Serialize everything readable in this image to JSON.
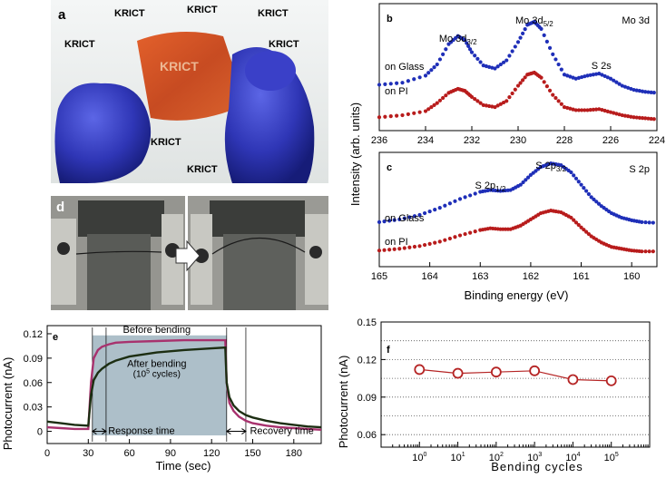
{
  "panels": {
    "a": {
      "label": "a",
      "logo_text": "KRICT"
    },
    "d": {
      "label": "d"
    },
    "b": {
      "label": "b",
      "element": "Mo 3d",
      "peaks": [
        {
          "text": "Mo 3d",
          "sub": "3/2"
        },
        {
          "text": "Mo 3d",
          "sub": "5/2"
        },
        {
          "text": "S 2s",
          "sub": ""
        }
      ],
      "x_ticks": [
        "236",
        "234",
        "232",
        "230",
        "228",
        "226",
        "224"
      ]
    },
    "c": {
      "label": "c",
      "element": "S 2p",
      "peaks": [
        {
          "text": "S 2p",
          "sub": "1/2"
        },
        {
          "text": "S 2p",
          "sub": "3/2"
        }
      ],
      "x_ticks": [
        "165",
        "164",
        "163",
        "162",
        "161",
        "160"
      ]
    },
    "bc_common": {
      "ylabel": "Intensity (arb. units)",
      "xlabel": "Binding energy (eV)",
      "series_glass": "on Glass",
      "series_pi": "on PI"
    },
    "e": {
      "label": "e",
      "xlabel": "Time (sec)",
      "ylabel": "Photocurrent (nA)",
      "before": "Before bending",
      "after_line1": "After bending",
      "after_line2_pre": "(10",
      "after_line2_sup": "5",
      "after_line2_post": " cycles)",
      "response": "Response time",
      "recovery": "Recovery time",
      "x_ticks": [
        "0",
        "30",
        "60",
        "90",
        "120",
        "150",
        "180"
      ],
      "y_ticks": [
        "0",
        "0.03",
        "0.06",
        "0.09",
        "0.12"
      ]
    },
    "f": {
      "label": "f",
      "xlabel": "Bending cycles",
      "ylabel": "Photocurrent (nA)",
      "y_ticks": [
        "0.06",
        "0.09",
        "0.12",
        "0.15"
      ],
      "x_ticks": [
        {
          "base": "10",
          "exp": "0"
        },
        {
          "base": "10",
          "exp": "1"
        },
        {
          "base": "10",
          "exp": "2"
        },
        {
          "base": "10",
          "exp": "3"
        },
        {
          "base": "10",
          "exp": "4"
        },
        {
          "base": "10",
          "exp": "5"
        }
      ]
    }
  },
  "colors": {
    "glass": "#1f2fb8",
    "pi": "#b81c1c",
    "shade": "#9fb4bf",
    "before": "#a8326e",
    "after": "#1c2e12",
    "f_marker": "#b52424",
    "xps_title": "#1a7a3a"
  },
  "chart_data": [
    {
      "type": "scatter",
      "title": "Mo 3d",
      "xlabel": "Binding energy (eV)",
      "ylabel": "Intensity (arb. units)",
      "xlim": [
        236,
        224
      ],
      "x_reversed": true,
      "series": [
        {
          "name": "on Glass",
          "x": [
            236,
            235,
            234,
            233.5,
            233,
            232.6,
            232.3,
            232,
            231.5,
            231,
            230.5,
            230,
            229.6,
            229.3,
            229,
            228.5,
            228,
            227.5,
            227,
            226.5,
            226,
            225.5,
            225,
            224.5,
            224
          ],
          "y": [
            0.38,
            0.4,
            0.47,
            0.58,
            0.78,
            0.86,
            0.82,
            0.7,
            0.57,
            0.54,
            0.62,
            0.8,
            0.97,
            1.0,
            0.93,
            0.68,
            0.48,
            0.44,
            0.47,
            0.49,
            0.44,
            0.37,
            0.33,
            0.31,
            0.3
          ]
        },
        {
          "name": "on PI",
          "x": [
            236,
            235,
            234,
            233.5,
            233,
            232.6,
            232.3,
            232,
            231.5,
            231,
            230.5,
            230,
            229.6,
            229.3,
            229,
            228.5,
            228,
            227.5,
            227,
            226.5,
            226,
            225.5,
            225,
            224.5,
            224
          ],
          "y": [
            0.06,
            0.08,
            0.12,
            0.2,
            0.3,
            0.34,
            0.32,
            0.26,
            0.18,
            0.16,
            0.22,
            0.37,
            0.48,
            0.5,
            0.45,
            0.28,
            0.16,
            0.13,
            0.13,
            0.14,
            0.11,
            0.08,
            0.06,
            0.05,
            0.04
          ]
        }
      ]
    },
    {
      "type": "scatter",
      "title": "S 2p",
      "xlabel": "Binding energy (eV)",
      "ylabel": "Intensity (arb. units)",
      "xlim": [
        165,
        159.5
      ],
      "x_reversed": true,
      "series": [
        {
          "name": "on Glass",
          "x": [
            165,
            164.6,
            164.2,
            163.8,
            163.4,
            163.0,
            162.8,
            162.6,
            162.4,
            162.2,
            162.0,
            161.8,
            161.6,
            161.4,
            161.2,
            161.0,
            160.8,
            160.6,
            160.4,
            160.2,
            160.0,
            159.8,
            159.5
          ],
          "y": [
            0.42,
            0.45,
            0.5,
            0.58,
            0.68,
            0.76,
            0.78,
            0.77,
            0.78,
            0.84,
            0.95,
            1.04,
            1.08,
            1.06,
            0.98,
            0.84,
            0.7,
            0.6,
            0.52,
            0.47,
            0.44,
            0.42,
            0.41
          ]
        },
        {
          "name": "on PI",
          "x": [
            165,
            164.6,
            164.2,
            163.8,
            163.4,
            163.0,
            162.8,
            162.6,
            162.4,
            162.2,
            162.0,
            161.8,
            161.6,
            161.4,
            161.2,
            161.0,
            160.8,
            160.6,
            160.4,
            160.2,
            160.0,
            159.8,
            159.5
          ],
          "y": [
            0.1,
            0.12,
            0.15,
            0.2,
            0.27,
            0.33,
            0.35,
            0.34,
            0.34,
            0.38,
            0.45,
            0.52,
            0.55,
            0.53,
            0.47,
            0.36,
            0.26,
            0.19,
            0.14,
            0.12,
            0.1,
            0.09,
            0.09
          ]
        }
      ]
    },
    {
      "type": "line",
      "xlabel": "Time (sec)",
      "ylabel": "Photocurrent (nA)",
      "xlim": [
        0,
        200
      ],
      "ylim": [
        -0.015,
        0.13
      ],
      "series": [
        {
          "name": "Before bending",
          "x": [
            0,
            10,
            20,
            30,
            32,
            34,
            37,
            40,
            45,
            50,
            60,
            80,
            100,
            120,
            130,
            131,
            133,
            136,
            140,
            145,
            150,
            160,
            170,
            180,
            190,
            200
          ],
          "y": [
            0.005,
            0.004,
            0.003,
            0.003,
            0.06,
            0.09,
            0.1,
            0.104,
            0.107,
            0.109,
            0.11,
            0.111,
            0.112,
            0.112,
            0.112,
            0.06,
            0.035,
            0.025,
            0.018,
            0.013,
            0.01,
            0.007,
            0.005,
            0.004,
            0.003,
            0.002
          ]
        },
        {
          "name": "After bending (10^5 cycles)",
          "x": [
            0,
            10,
            20,
            30,
            32,
            34,
            37,
            40,
            45,
            50,
            60,
            80,
            100,
            120,
            130,
            131,
            133,
            136,
            140,
            145,
            150,
            160,
            170,
            180,
            190,
            200
          ],
          "y": [
            0.012,
            0.01,
            0.008,
            0.007,
            0.045,
            0.063,
            0.072,
            0.077,
            0.083,
            0.087,
            0.092,
            0.097,
            0.1,
            0.102,
            0.103,
            0.06,
            0.042,
            0.032,
            0.025,
            0.02,
            0.017,
            0.013,
            0.01,
            0.008,
            0.006,
            0.005
          ]
        }
      ],
      "shaded_region": [
        33,
        131
      ],
      "response_marks": [
        33,
        43
      ],
      "recovery_marks": [
        131,
        145
      ]
    },
    {
      "type": "line",
      "xlabel": "Bending cycles",
      "ylabel": "Photocurrent (nA)",
      "x_log": true,
      "x": [
        1,
        10,
        100,
        1000,
        10000,
        100000
      ],
      "values": [
        0.112,
        0.109,
        0.11,
        0.111,
        0.104,
        0.103
      ],
      "ylim": [
        0.05,
        0.15
      ],
      "grid": true
    }
  ]
}
